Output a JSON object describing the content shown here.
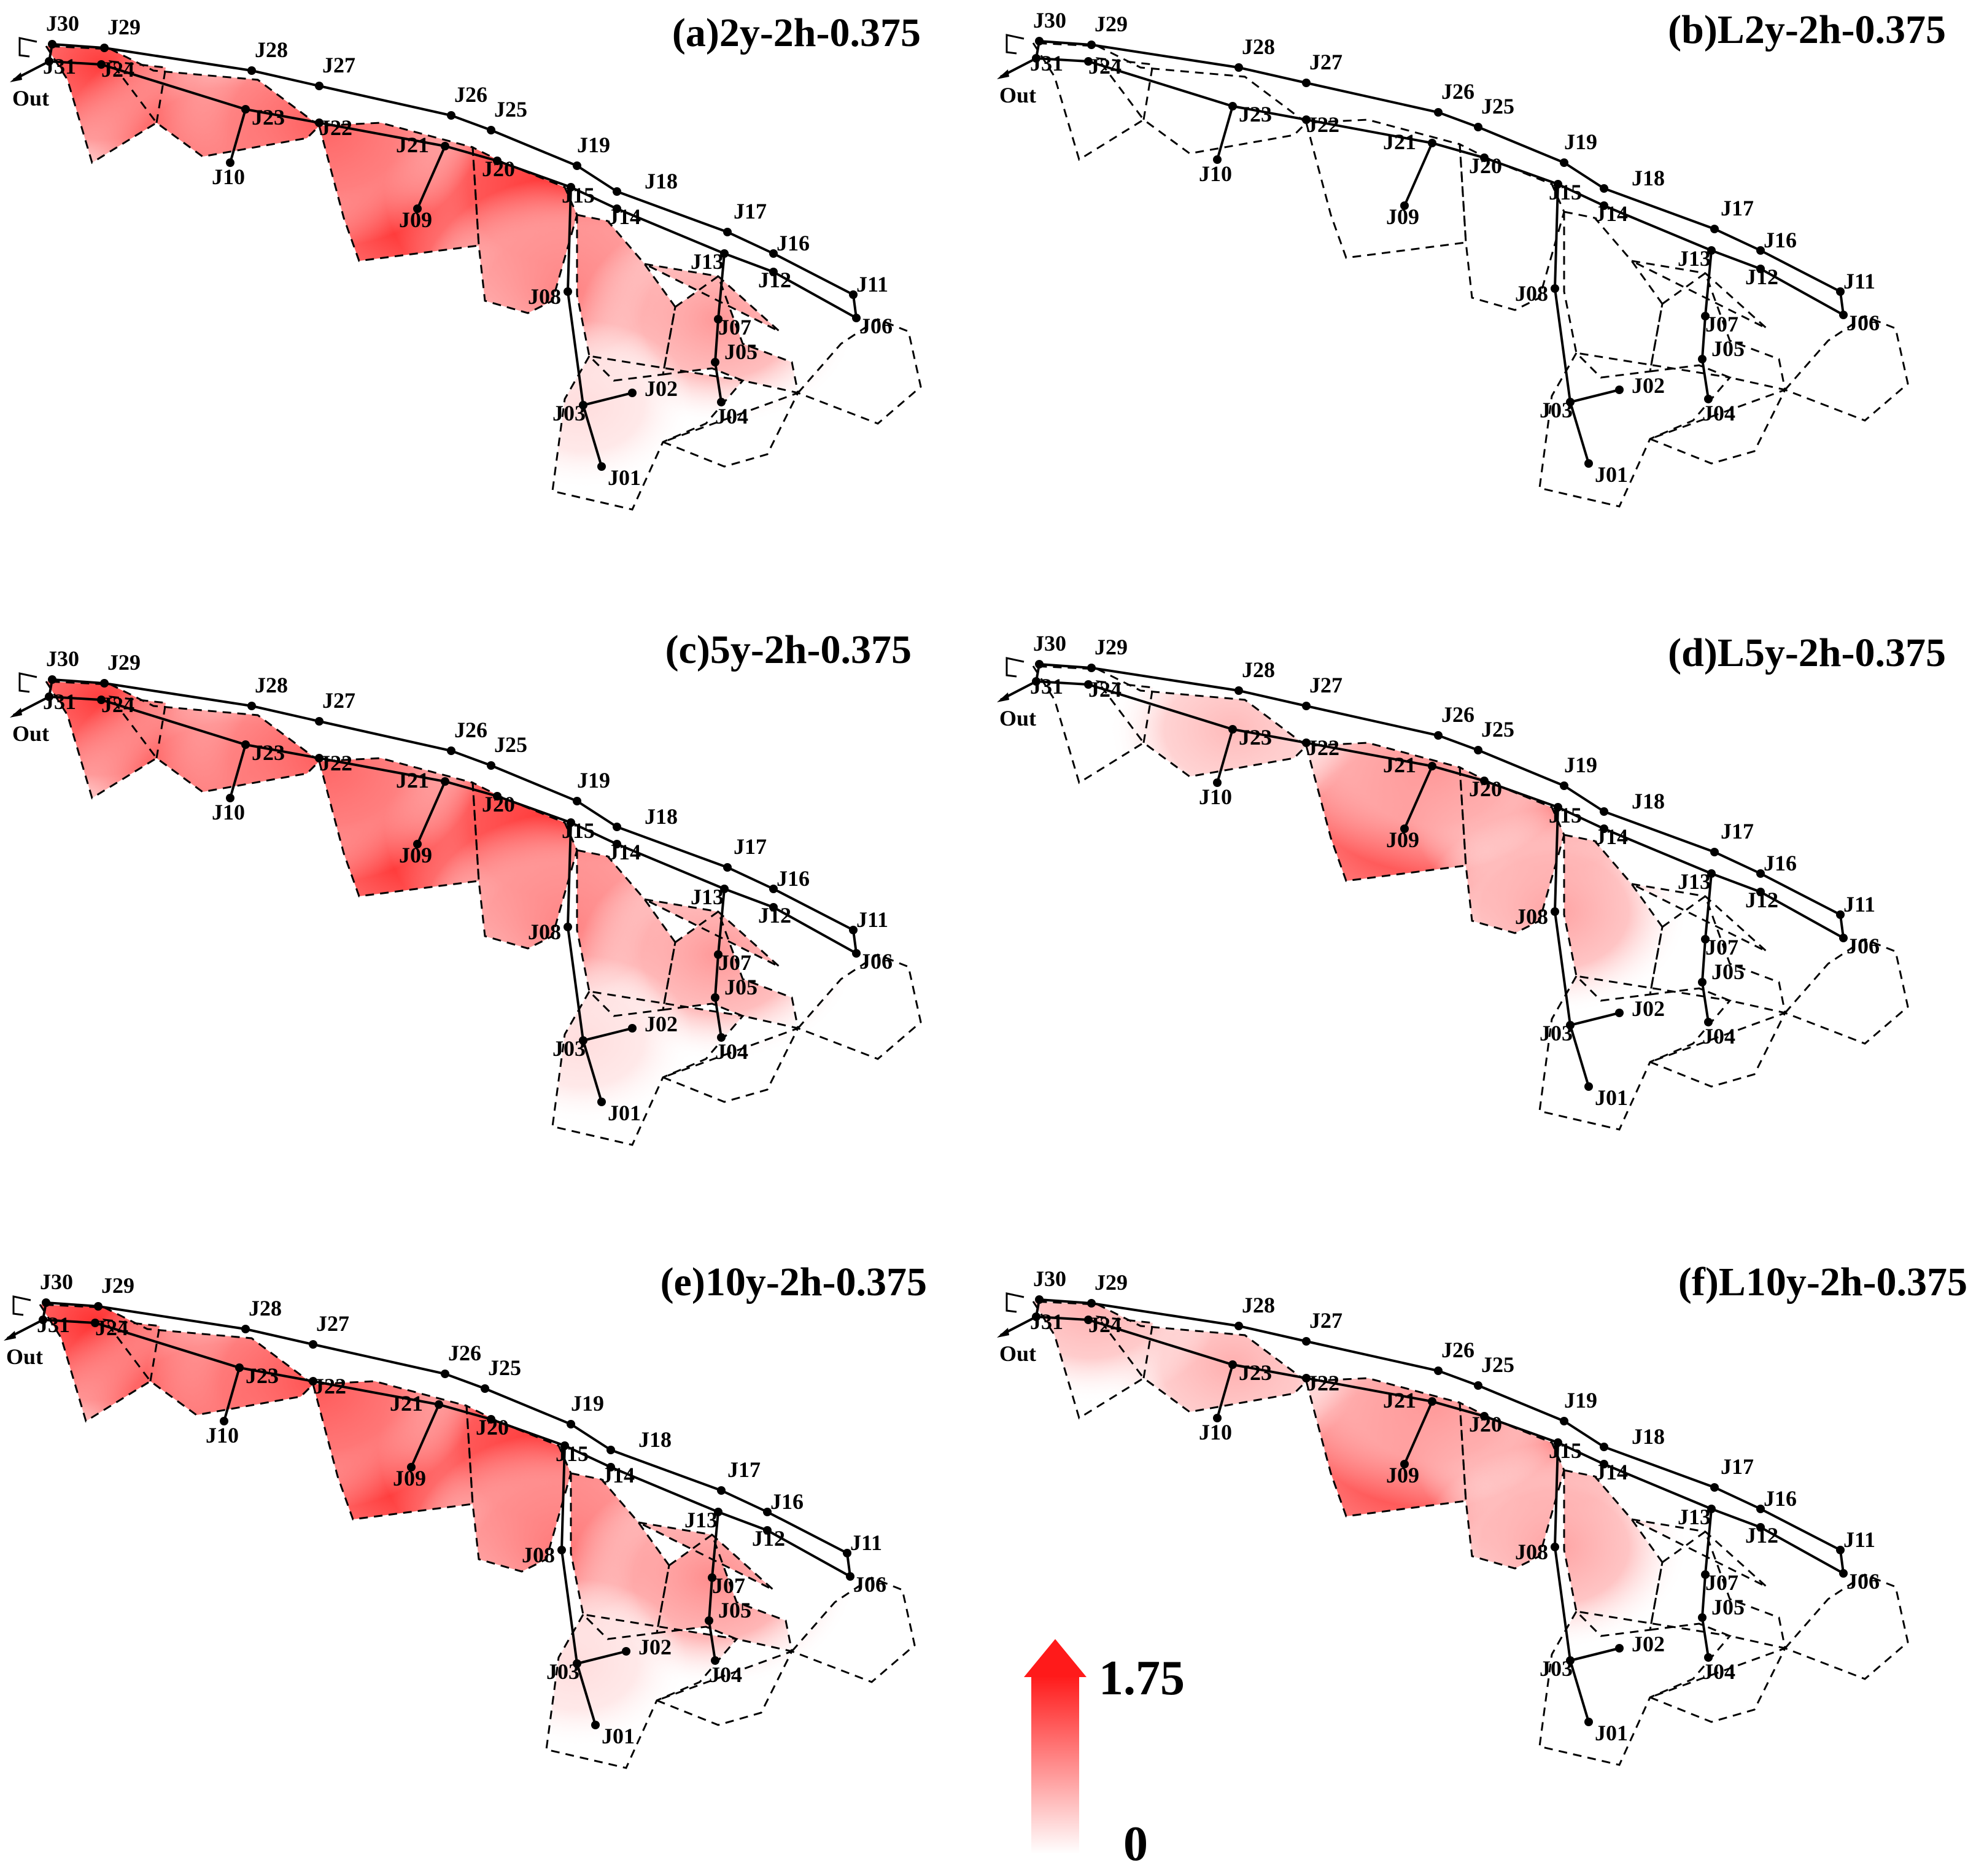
{
  "panels": [
    {
      "id": "a",
      "title": "(a)2y-2h-0.375",
      "intensity": 1.0,
      "hotspots": [
        {
          "node": "J24",
          "level": 0.85
        },
        {
          "node": "J10",
          "level": 0.85
        },
        {
          "node": "J09",
          "level": 1.0
        },
        {
          "node": "J15",
          "level": 0.95
        },
        {
          "node": "J08",
          "level": 0.55
        },
        {
          "node": "J07",
          "level": 0.45
        },
        {
          "node": "J22",
          "level": 0.7
        },
        {
          "node": "J03",
          "level": 0.15
        }
      ]
    },
    {
      "id": "b",
      "title": "(b)L2y-2h-0.375",
      "intensity": 0.0,
      "hotspots": []
    },
    {
      "id": "c",
      "title": "(c)5y-2h-0.375",
      "intensity": 1.0,
      "hotspots": [
        {
          "node": "J24",
          "level": 0.85
        },
        {
          "node": "J10",
          "level": 0.85
        },
        {
          "node": "J09",
          "level": 1.0
        },
        {
          "node": "J15",
          "level": 0.95
        },
        {
          "node": "J08",
          "level": 0.55
        },
        {
          "node": "J07",
          "level": 0.45
        },
        {
          "node": "J22",
          "level": 0.7
        },
        {
          "node": "J03",
          "level": 0.15
        }
      ]
    },
    {
      "id": "d",
      "title": "(d)L5y-2h-0.375",
      "intensity": 1.0,
      "hotspots": [
        {
          "node": "J09",
          "level": 0.9
        },
        {
          "node": "J15",
          "level": 0.55
        },
        {
          "node": "J08",
          "level": 0.4
        },
        {
          "node": "J23",
          "level": 0.3
        },
        {
          "node": "J21",
          "level": 0.45
        }
      ]
    },
    {
      "id": "e",
      "title": "(e)10y-2h-0.375",
      "intensity": 1.0,
      "hotspots": [
        {
          "node": "J24",
          "level": 0.9
        },
        {
          "node": "J10",
          "level": 0.9
        },
        {
          "node": "J09",
          "level": 1.0
        },
        {
          "node": "J15",
          "level": 0.95
        },
        {
          "node": "J08",
          "level": 0.6
        },
        {
          "node": "J07",
          "level": 0.5
        },
        {
          "node": "J22",
          "level": 0.75
        },
        {
          "node": "J03",
          "level": 0.15
        }
      ]
    },
    {
      "id": "f",
      "title": "(f)L10y-2h-0.375",
      "intensity": 1.0,
      "hotspots": [
        {
          "node": "J09",
          "level": 0.9
        },
        {
          "node": "J15",
          "level": 0.55
        },
        {
          "node": "J08",
          "level": 0.4
        },
        {
          "node": "J23",
          "level": 0.35
        },
        {
          "node": "J21",
          "level": 0.45
        },
        {
          "node": "J29",
          "level": 0.35
        }
      ]
    }
  ],
  "node_labels": [
    "J01",
    "J02",
    "J03",
    "J04",
    "J05",
    "J06",
    "J07",
    "J08",
    "J09",
    "J10",
    "J11",
    "J12",
    "J13",
    "J14",
    "J15",
    "J16",
    "J17",
    "J18",
    "J19",
    "J20",
    "J21",
    "J22",
    "J23",
    "J24",
    "J25",
    "J26",
    "J27",
    "J28",
    "J29",
    "J30",
    "J31"
  ],
  "outlet_label": "Out",
  "legend": {
    "max_label": "1.75",
    "min_label": "0",
    "max_value": 1.75,
    "min_value": 0,
    "color_max": "#ff1a1a",
    "color_min": "#ffffff"
  }
}
